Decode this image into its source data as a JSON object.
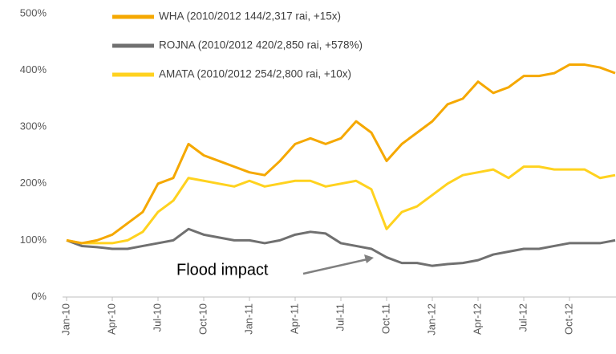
{
  "chart_data": {
    "type": "line",
    "categories": [
      "Jan-10",
      null,
      null,
      "Apr-10",
      null,
      null,
      "Jul-10",
      null,
      null,
      "Oct-10",
      null,
      null,
      "Jan-11",
      null,
      null,
      "Apr-11",
      null,
      null,
      "Jul-11",
      null,
      null,
      "Oct-11",
      null,
      null,
      "Jan-12",
      null,
      null,
      "Apr-12",
      null,
      null,
      "Jul-12",
      null,
      null,
      "Oct-12",
      null,
      null,
      null
    ],
    "series": [
      {
        "name": "WHA (2010/2012  144/2,317 rai, +15x)",
        "color": "#f5a800",
        "values": [
          100,
          95,
          100,
          110,
          130,
          150,
          200,
          210,
          270,
          250,
          240,
          230,
          220,
          215,
          240,
          270,
          280,
          270,
          280,
          310,
          290,
          240,
          270,
          290,
          310,
          340,
          350,
          380,
          360,
          370,
          390,
          390,
          395,
          410,
          410,
          405,
          395
        ]
      },
      {
        "name": "ROJNA (2010/2012  420/2,850 rai, +578%)",
        "color": "#707070",
        "values": [
          100,
          90,
          88,
          85,
          85,
          90,
          95,
          100,
          120,
          110,
          105,
          100,
          100,
          95,
          100,
          110,
          115,
          112,
          95,
          90,
          85,
          70,
          60,
          60,
          55,
          58,
          60,
          65,
          75,
          80,
          85,
          85,
          90,
          95,
          95,
          95,
          100
        ]
      },
      {
        "name": "AMATA (2010/2012  254/2,800 rai, +10x)",
        "color": "#ffd21f",
        "values": [
          100,
          95,
          95,
          95,
          100,
          115,
          150,
          170,
          210,
          205,
          200,
          195,
          205,
          195,
          200,
          205,
          205,
          195,
          200,
          205,
          190,
          120,
          150,
          160,
          180,
          200,
          215,
          220,
          225,
          210,
          230,
          230,
          225,
          225,
          225,
          210,
          215
        ]
      }
    ],
    "ylim": [
      0,
      500
    ],
    "yticks": [
      {
        "value": 0,
        "label": "0%"
      },
      {
        "value": 100,
        "label": "100%"
      },
      {
        "value": 200,
        "label": "200%"
      },
      {
        "value": 300,
        "label": "300%"
      },
      {
        "value": 400,
        "label": "400%"
      },
      {
        "value": 500,
        "label": "500%"
      }
    ],
    "annotation": "Flood impact",
    "grid": false,
    "legend": "top"
  }
}
